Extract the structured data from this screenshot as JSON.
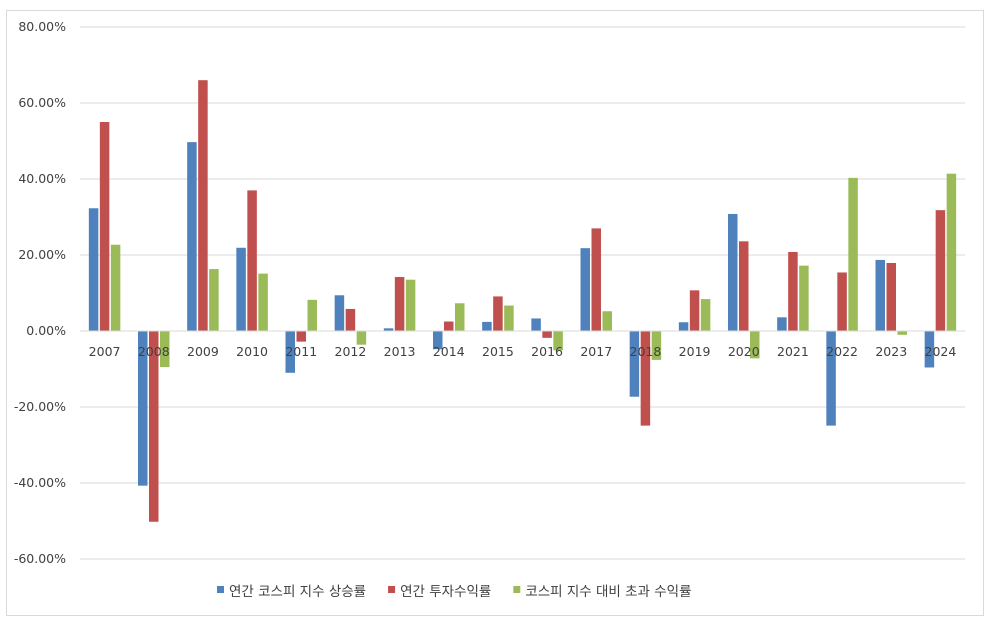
{
  "chart_data": {
    "type": "bar",
    "title": "",
    "xlabel": "",
    "ylabel": "",
    "categories": [
      "2007",
      "2008",
      "2009",
      "2010",
      "2011",
      "2012",
      "2013",
      "2014",
      "2015",
      "2016",
      "2017",
      "2018",
      "2019",
      "2020",
      "2021",
      "2022",
      "2023",
      "2024"
    ],
    "series": [
      {
        "name": "연간 코스피 지수 상승률",
        "color": "#4f81bd",
        "values": [
          32.3,
          -40.7,
          49.7,
          21.9,
          -11.0,
          9.4,
          0.7,
          -4.8,
          2.4,
          3.3,
          21.8,
          -17.3,
          2.3,
          30.8,
          3.6,
          -24.9,
          18.7,
          -9.6
        ]
      },
      {
        "name": "연간 투자수익률",
        "color": "#c0504d",
        "values": [
          55.0,
          -50.2,
          66.0,
          37.0,
          -2.8,
          5.8,
          14.2,
          2.5,
          9.1,
          -1.8,
          27.0,
          -24.9,
          10.7,
          23.6,
          20.8,
          15.4,
          17.9,
          31.8
        ]
      },
      {
        "name": "코스피 지수 대비 초과 수익률",
        "color": "#9bbb59",
        "values": [
          22.7,
          -9.5,
          16.3,
          15.1,
          8.2,
          -3.6,
          13.5,
          7.3,
          6.7,
          -5.1,
          5.2,
          -7.6,
          8.4,
          -7.2,
          17.2,
          40.3,
          -1.0,
          41.4
        ]
      }
    ],
    "ylim": [
      -60,
      80
    ],
    "yticks": [
      80,
      60,
      40,
      20,
      0,
      -20,
      -40,
      -60
    ],
    "ytick_labels": [
      "80.00%",
      "60.00%",
      "40.00%",
      "20.00%",
      "0.00%",
      "-20.00%",
      "-40.00%",
      "-60.00%"
    ],
    "grid": true,
    "legend": "bottom-center"
  }
}
